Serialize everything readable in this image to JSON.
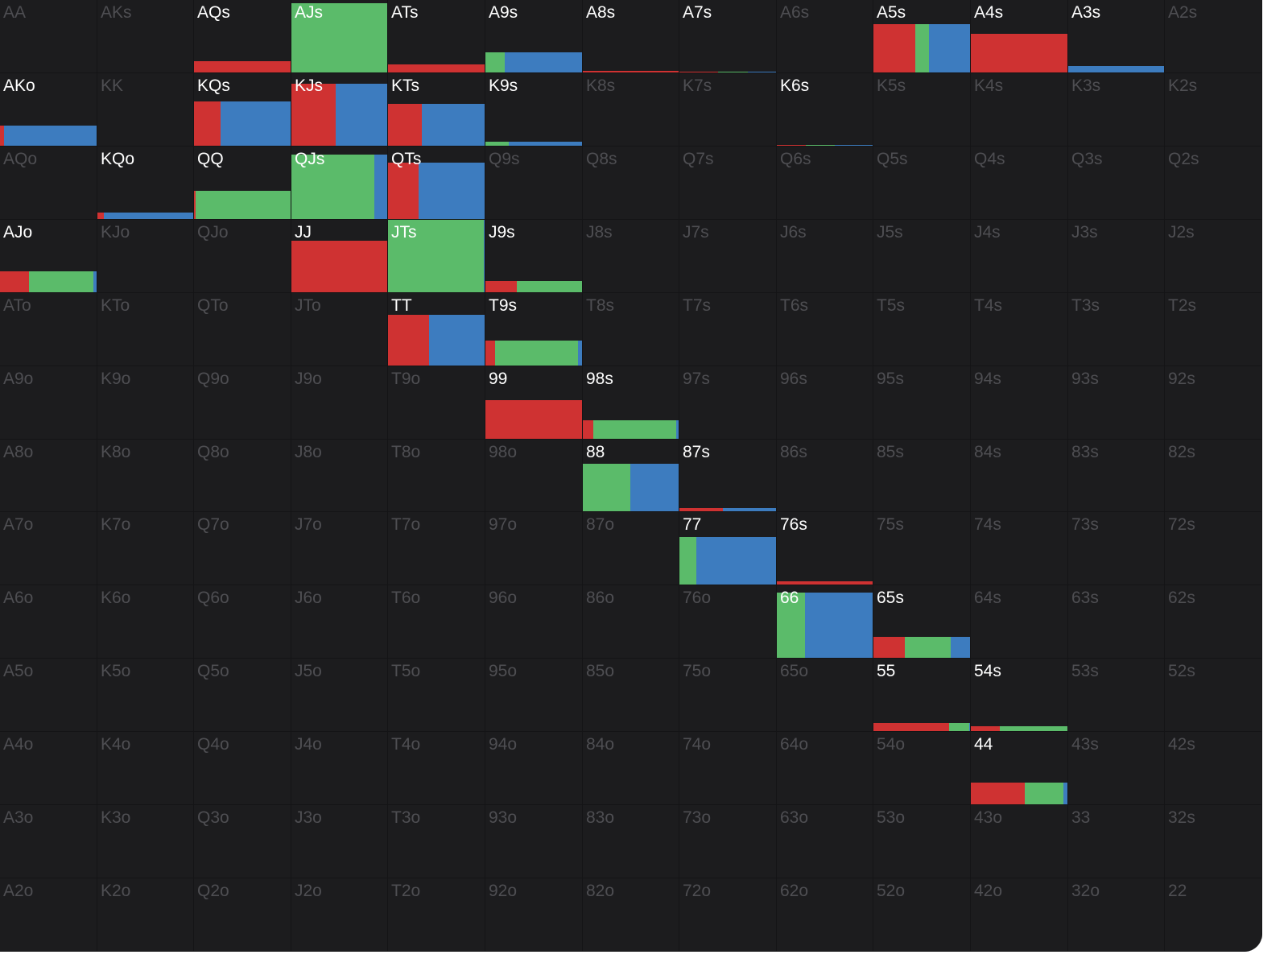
{
  "colors": {
    "background": "#1c1c1e",
    "active_text": "#ffffff",
    "inactive_text": "#4e4e52",
    "action_1": "#cf3232",
    "action_2": "#5bbb6a",
    "action_3": "#3d7cbf"
  },
  "ranks": [
    "A",
    "K",
    "Q",
    "J",
    "T",
    "9",
    "8",
    "7",
    "6",
    "5",
    "4",
    "3",
    "2"
  ],
  "hands": [
    [
      "AA",
      "AKs",
      "AQs",
      "AJs",
      "ATs",
      "A9s",
      "A8s",
      "A7s",
      "A6s",
      "A5s",
      "A4s",
      "A3s",
      "A2s"
    ],
    [
      "AKo",
      "KK",
      "KQs",
      "KJs",
      "KTs",
      "K9s",
      "K8s",
      "K7s",
      "K6s",
      "K5s",
      "K4s",
      "K3s",
      "K2s"
    ],
    [
      "AQo",
      "KQo",
      "QQ",
      "QJs",
      "QTs",
      "Q9s",
      "Q8s",
      "Q7s",
      "Q6s",
      "Q5s",
      "Q4s",
      "Q3s",
      "Q2s"
    ],
    [
      "AJo",
      "KJo",
      "QJo",
      "JJ",
      "JTs",
      "J9s",
      "J8s",
      "J7s",
      "J6s",
      "J5s",
      "J4s",
      "J3s",
      "J2s"
    ],
    [
      "ATo",
      "KTo",
      "QTo",
      "JTo",
      "TT",
      "T9s",
      "T8s",
      "T7s",
      "T6s",
      "T5s",
      "T4s",
      "T3s",
      "T2s"
    ],
    [
      "A9o",
      "K9o",
      "Q9o",
      "J9o",
      "T9o",
      "99",
      "98s",
      "97s",
      "96s",
      "95s",
      "94s",
      "93s",
      "92s"
    ],
    [
      "A8o",
      "K8o",
      "Q8o",
      "J8o",
      "T8o",
      "98o",
      "88",
      "87s",
      "86s",
      "85s",
      "84s",
      "83s",
      "82s"
    ],
    [
      "A7o",
      "K7o",
      "Q7o",
      "J7o",
      "T7o",
      "97o",
      "87o",
      "77",
      "76s",
      "75s",
      "74s",
      "73s",
      "72s"
    ],
    [
      "A6o",
      "K6o",
      "Q6o",
      "J6o",
      "T6o",
      "96o",
      "86o",
      "76o",
      "66",
      "65s",
      "64s",
      "63s",
      "62s"
    ],
    [
      "A5o",
      "K5o",
      "Q5o",
      "J5o",
      "T5o",
      "95o",
      "85o",
      "75o",
      "65o",
      "55",
      "54s",
      "53s",
      "52s"
    ],
    [
      "A4o",
      "K4o",
      "Q4o",
      "J4o",
      "T4o",
      "94o",
      "84o",
      "74o",
      "64o",
      "54o",
      "44",
      "43s",
      "42s"
    ],
    [
      "A3o",
      "K3o",
      "Q3o",
      "J3o",
      "T3o",
      "93o",
      "83o",
      "73o",
      "63o",
      "53o",
      "43o",
      "33",
      "32s"
    ],
    [
      "A2o",
      "K2o",
      "Q2o",
      "J2o",
      "T2o",
      "92o",
      "82o",
      "72o",
      "62o",
      "52o",
      "42o",
      "32o",
      "22"
    ]
  ],
  "strategy": {
    "AQs": {
      "freq": 0.15,
      "mix": [
        1.0,
        0.0,
        0.0
      ]
    },
    "AJs": {
      "freq": 0.95,
      "mix": [
        0.0,
        1.0,
        0.0
      ]
    },
    "ATs": {
      "freq": 0.11,
      "mix": [
        1.0,
        0.0,
        0.0
      ]
    },
    "A9s": {
      "freq": 0.27,
      "mix": [
        0.0,
        0.2,
        0.8
      ]
    },
    "A8s": {
      "freq": 0.02,
      "mix": [
        1.0,
        0.0,
        0.0
      ]
    },
    "A7s": {
      "freq": 0.01,
      "mix": [
        0.4,
        0.3,
        0.3
      ]
    },
    "A5s": {
      "freq": 0.66,
      "mix": [
        0.43,
        0.14,
        0.43
      ]
    },
    "A4s": {
      "freq": 0.53,
      "mix": [
        1.0,
        0.0,
        0.0
      ]
    },
    "A3s": {
      "freq": 0.09,
      "mix": [
        0.0,
        0.0,
        1.0
      ]
    },
    "AKo": {
      "freq": 0.28,
      "mix": [
        0.04,
        0.0,
        0.96
      ]
    },
    "KQs": {
      "freq": 0.6,
      "mix": [
        0.27,
        0.0,
        0.73
      ]
    },
    "KJs": {
      "freq": 0.85,
      "mix": [
        0.46,
        0.0,
        0.54
      ],
      "order": [
        1,
        0,
        2
      ]
    },
    "KTs": {
      "freq": 0.57,
      "mix": [
        0.35,
        0.0,
        0.65
      ]
    },
    "K9s": {
      "freq": 0.06,
      "mix": [
        0.0,
        0.24,
        0.76
      ]
    },
    "K6s": {
      "freq": 0.01,
      "mix": [
        0.3,
        0.3,
        0.4
      ]
    },
    "KQo": {
      "freq": 0.09,
      "mix": [
        0.07,
        0.0,
        0.93
      ]
    },
    "QQ": {
      "freq": 0.38,
      "mix": [
        0.02,
        0.98,
        0.0
      ]
    },
    "QJs": {
      "freq": 0.88,
      "mix": [
        0.0,
        0.86,
        0.14
      ]
    },
    "QTs": {
      "freq": 0.77,
      "mix": [
        0.31,
        0.0,
        0.69
      ]
    },
    "AJo": {
      "freq": 0.29,
      "mix": [
        0.3,
        0.66,
        0.04
      ]
    },
    "JJ": {
      "freq": 0.7,
      "mix": [
        1.0,
        0.0,
        0.0
      ]
    },
    "JTs": {
      "freq": 1.0,
      "mix": [
        0.0,
        0.98,
        0.02
      ]
    },
    "J9s": {
      "freq": 0.15,
      "mix": [
        0.32,
        0.68,
        0.0
      ]
    },
    "TT": {
      "freq": 0.69,
      "mix": [
        0.42,
        0.0,
        0.58
      ]
    },
    "T9s": {
      "freq": 0.34,
      "mix": [
        0.1,
        0.85,
        0.05
      ]
    },
    "99": {
      "freq": 0.53,
      "mix": [
        1.0,
        0.0,
        0.0
      ]
    },
    "98s": {
      "freq": 0.25,
      "mix": [
        0.11,
        0.86,
        0.03
      ]
    },
    "88": {
      "freq": 0.66,
      "mix": [
        0.0,
        0.49,
        0.51
      ]
    },
    "87s": {
      "freq": 0.04,
      "mix": [
        0.45,
        0.0,
        0.55
      ]
    },
    "77": {
      "freq": 0.65,
      "mix": [
        0.0,
        0.17,
        0.83
      ]
    },
    "76s": {
      "freq": 0.04,
      "mix": [
        1.0,
        0.0,
        0.0
      ]
    },
    "66": {
      "freq": 0.89,
      "mix": [
        0.0,
        0.29,
        0.71
      ]
    },
    "65s": {
      "freq": 0.29,
      "mix": [
        0.32,
        0.47,
        0.21
      ]
    },
    "55": {
      "freq": 0.11,
      "mix": [
        0.78,
        0.2,
        0.02
      ]
    },
    "54s": {
      "freq": 0.07,
      "mix": [
        0.3,
        0.7,
        0.0
      ]
    },
    "44": {
      "freq": 0.3,
      "mix": [
        0.55,
        0.4,
        0.05
      ]
    }
  }
}
